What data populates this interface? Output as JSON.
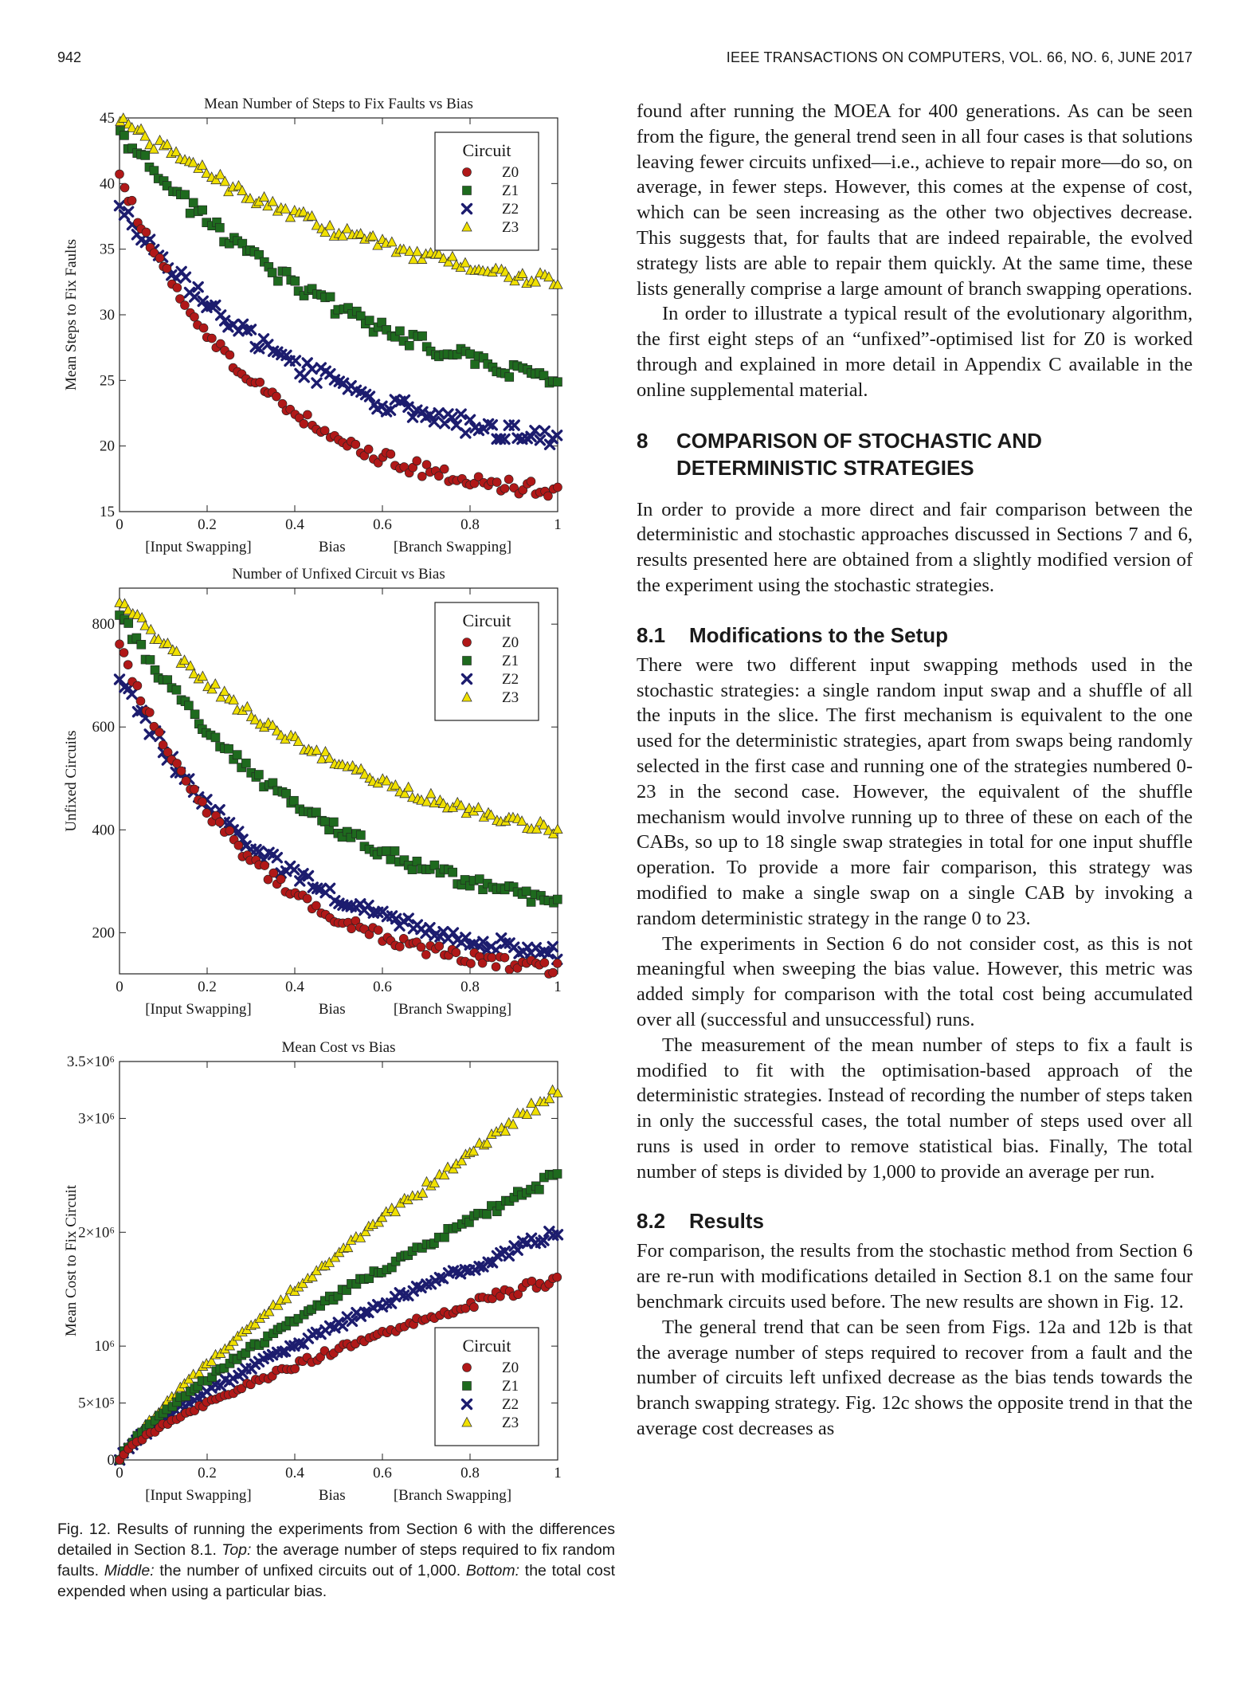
{
  "header": {
    "page_number": "942",
    "journal": "IEEE TRANSACTIONS ON COMPUTERS,   VOL. 66,   NO. 6,   JUNE 2017"
  },
  "chart_data": [
    {
      "type": "scatter",
      "title": "Mean Number of Steps to Fix Faults vs Bias",
      "ylabel": "Mean Steps to Fix Faults",
      "xlabel_left": "[Input Swapping]",
      "xlabel_mid": "Bias",
      "xlabel_right": "[Branch Swapping]",
      "xlim": [
        0,
        1
      ],
      "ylim": [
        15,
        45
      ],
      "yticks": [
        15,
        20,
        25,
        30,
        35,
        40,
        45
      ],
      "ytick_labels": [
        "15",
        "20",
        "25",
        "30",
        "35",
        "40",
        "45"
      ],
      "xticks": [
        0,
        0.2,
        0.4,
        0.6,
        0.8,
        1
      ],
      "xtick_labels": [
        "0",
        "0.2",
        "0.4",
        "0.6",
        "0.8",
        "1"
      ],
      "legend_title": "Circuit",
      "legend_position": "top-right",
      "series": [
        {
          "name": "Z0",
          "marker": "circle",
          "color": "#b01818",
          "model": {
            "type": "exp",
            "start": 40.5,
            "end": 16.5,
            "k": 3.2,
            "noise": 0.6
          }
        },
        {
          "name": "Z1",
          "marker": "square",
          "color": "#1e6a1e",
          "model": {
            "type": "exp",
            "start": 44.0,
            "end": 25.0,
            "k": 1.8,
            "noise": 0.6
          }
        },
        {
          "name": "Z2",
          "marker": "x",
          "color": "#1c1c6e",
          "model": {
            "type": "exp",
            "start": 38.5,
            "end": 20.5,
            "k": 2.4,
            "noise": 0.7
          }
        },
        {
          "name": "Z3",
          "marker": "triangle",
          "color": "#f0e000",
          "model": {
            "type": "exp",
            "start": 45.0,
            "end": 32.5,
            "k": 1.6,
            "noise": 0.5
          }
        }
      ]
    },
    {
      "type": "scatter",
      "title": "Number of Unfixed Circuit vs Bias",
      "ylabel": "Unfixed Circuits",
      "xlabel_left": "[Input Swapping]",
      "xlabel_mid": "Bias",
      "xlabel_right": "[Branch Swapping]",
      "xlim": [
        0,
        1
      ],
      "ylim": [
        120,
        870
      ],
      "yticks": [
        200,
        400,
        600,
        800
      ],
      "ytick_labels": [
        "200",
        "400",
        "600",
        "800"
      ],
      "xticks": [
        0,
        0.2,
        0.4,
        0.6,
        0.8,
        1
      ],
      "xtick_labels": [
        "0",
        "0.2",
        "0.4",
        "0.6",
        "0.8",
        "1"
      ],
      "legend_title": "Circuit",
      "legend_position": "top-right",
      "series": [
        {
          "name": "Z0",
          "marker": "circle",
          "color": "#b01818",
          "model": {
            "type": "exp",
            "start": 760,
            "end": 130,
            "k": 3.4,
            "noise": 12
          }
        },
        {
          "name": "Z1",
          "marker": "square",
          "color": "#1e6a1e",
          "model": {
            "type": "exp",
            "start": 820,
            "end": 260,
            "k": 2.2,
            "noise": 12
          }
        },
        {
          "name": "Z2",
          "marker": "x",
          "color": "#1c1c6e",
          "model": {
            "type": "exp",
            "start": 700,
            "end": 160,
            "k": 2.8,
            "noise": 14
          }
        },
        {
          "name": "Z3",
          "marker": "triangle",
          "color": "#f0e000",
          "model": {
            "type": "exp",
            "start": 850,
            "end": 400,
            "k": 1.8,
            "noise": 10
          }
        }
      ]
    },
    {
      "type": "scatter",
      "title": "Mean Cost vs Bias",
      "ylabel": "Mean Cost to Fix Circuit",
      "xlabel_left": "[Input Swapping]",
      "xlabel_mid": "Bias",
      "xlabel_right": "[Branch Swapping]",
      "xlim": [
        0,
        1
      ],
      "ylim": [
        0,
        3500000
      ],
      "yticks": [
        0,
        500000,
        1000000,
        2000000,
        3000000,
        3500000
      ],
      "ytick_labels": [
        "0",
        "5×10⁵",
        "10⁶",
        "2×10⁶",
        "3×10⁶",
        "3.5×10⁶"
      ],
      "xticks": [
        0,
        0.2,
        0.4,
        0.6,
        0.8,
        1
      ],
      "xtick_labels": [
        "0",
        "0.2",
        "0.4",
        "0.6",
        "0.8",
        "1"
      ],
      "legend_title": "Circuit",
      "legend_position": "bottom-right",
      "series": [
        {
          "name": "Z0",
          "marker": "circle",
          "color": "#b01818",
          "model": {
            "type": "pow",
            "start": 0,
            "end": 1600000,
            "p": 0.72,
            "noise": 40000
          }
        },
        {
          "name": "Z1",
          "marker": "square",
          "color": "#1e6a1e",
          "model": {
            "type": "pow",
            "start": 0,
            "end": 2500000,
            "p": 0.78,
            "noise": 40000
          }
        },
        {
          "name": "Z2",
          "marker": "x",
          "color": "#1c1c6e",
          "model": {
            "type": "pow",
            "start": 0,
            "end": 2000000,
            "p": 0.75,
            "noise": 40000
          }
        },
        {
          "name": "Z3",
          "marker": "triangle",
          "color": "#f0e000",
          "model": {
            "type": "pow",
            "start": 0,
            "end": 3250000,
            "p": 0.84,
            "noise": 40000
          }
        }
      ]
    }
  ],
  "caption": {
    "label": "Fig. 12. Results of running the experiments from Section 6 with the differences detailed in Section 8.1.",
    "top_tag": "Top:",
    "top_text": "the average number of steps required to fix random faults.",
    "middle_tag": "Middle:",
    "middle_text": "the number of unfixed circuits out of 1,000.",
    "bottom_tag": "Bottom:",
    "bottom_text": "the total cost expended when using a particular bias."
  },
  "body": {
    "p1": "found after running the MOEA for 400 generations. As can be seen from the figure, the general trend seen in all four cases is that solutions leaving fewer circuits unfixed—i.e., achieve to repair more—do so, on average, in fewer steps. However, this comes at the expense of cost, which can be seen increasing as the other two objectives decrease. This suggests that, for faults that are indeed repairable, the evolved strategy lists are able to repair them quickly. At the same time, these lists generally comprise a large amount of branch swapping operations.",
    "p2": "In order to illustrate a typical result of the evolutionary algorithm, the first eight steps of an “unfixed”-optimised list for Z0 is worked through and explained in more detail in Appendix C available in the online supplemental material.",
    "sec8_num": "8",
    "sec8_title": "COMPARISON OF STOCHASTIC AND DETERMINISTIC STRATEGIES",
    "p3": "In order to provide a more direct and fair comparison between the deterministic and stochastic approaches discussed in Sections 7 and 6, results presented here are obtained from a slightly modified version of the experiment using the stochastic strategies.",
    "sub81_num": "8.1",
    "sub81_title": "Modifications to the Setup",
    "p4": "There were two different input swapping methods used in the stochastic strategies: a single random input swap and a shuffle of all the inputs in the slice. The first mechanism is equivalent to the one used for the deterministic strategies, apart from swaps being randomly selected in the first case and running one of the strategies numbered 0-23 in the second case. However, the equivalent of the shuffle mechanism would involve running up to three of these on each of the CABs, so up to 18 single swap strategies in total for one input shuffle operation. To provide a more fair comparison, this strategy was modified to make a single swap on a single CAB by invoking a random deterministic strategy in the range 0 to 23.",
    "p5": "The experiments in Section 6 do not consider cost, as this is not meaningful when sweeping the bias value. However, this metric was added simply for comparison with the total cost being accumulated over all (successful and unsuccessful) runs.",
    "p6": "The measurement of the mean number of steps to fix a fault is modified to fit with the optimisation-based approach of the deterministic strategies. Instead of recording the number of steps taken in only the successful cases, the total number of steps used over all runs is used in order to remove statistical bias. Finally, The total number of steps is divided by 1,000 to provide an average per run.",
    "sub82_num": "8.2",
    "sub82_title": "Results",
    "p7": "For comparison, the results from the stochastic method from Section 6 are re-run with modifications detailed in Section 8.1 on the same four benchmark circuits used before. The new results are shown in Fig. 12.",
    "p8": "The general trend that can be seen from Figs. 12a and 12b is that the average number of steps required to recover from a fault and the number of circuits left unfixed decrease as the bias tends towards the branch swapping strategy. Fig. 12c shows the opposite trend in that the average cost decreases as"
  }
}
